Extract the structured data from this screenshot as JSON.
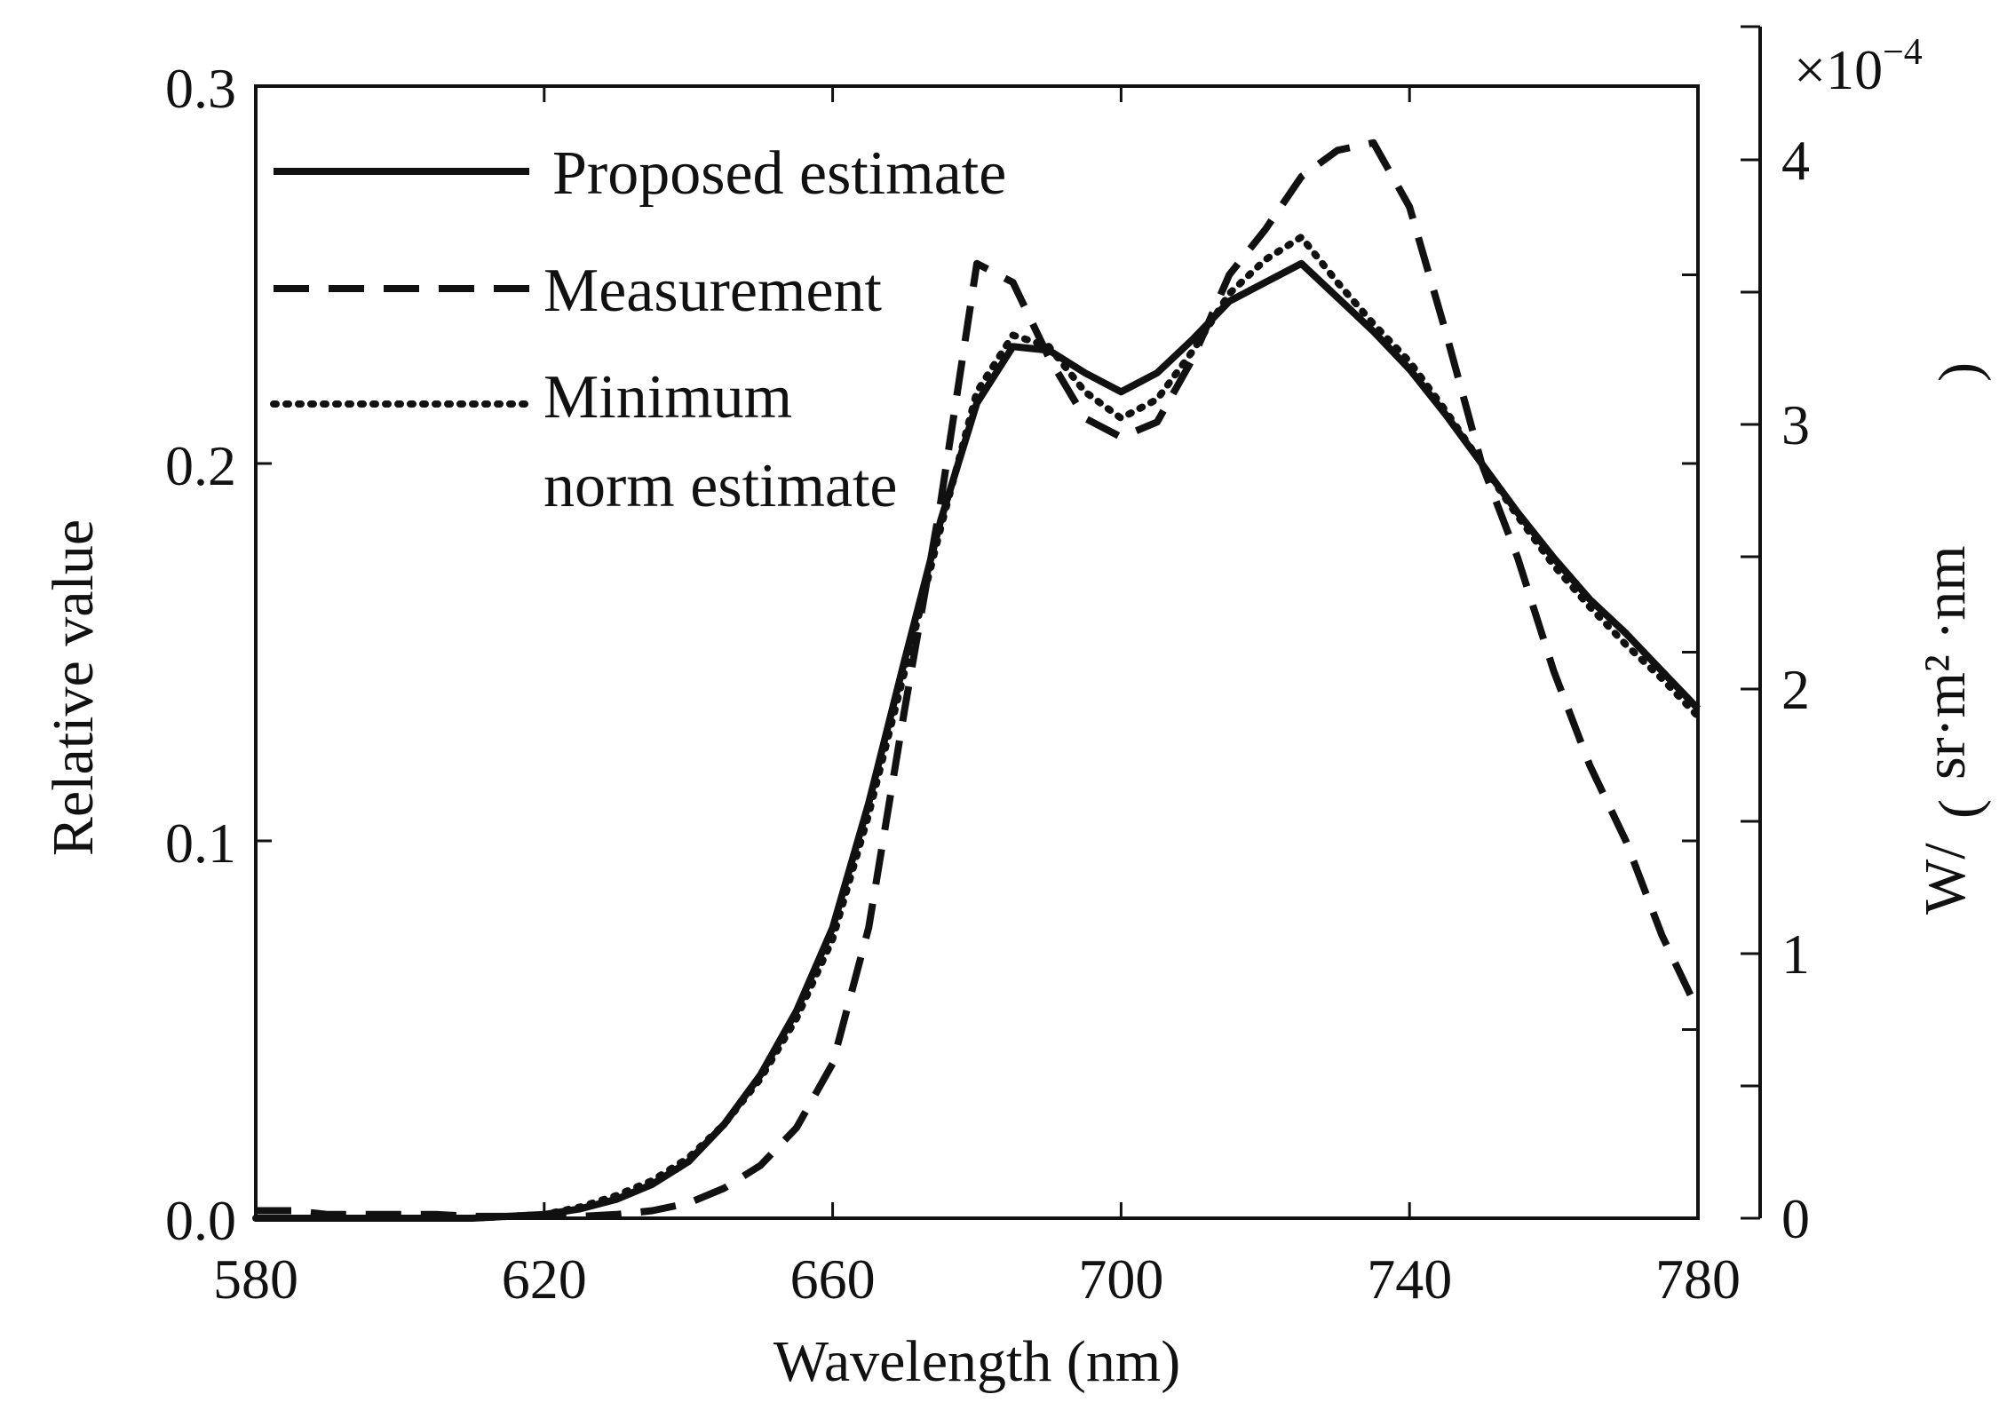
{
  "chart_data": {
    "type": "line",
    "title": "",
    "xlabel": "Wavelength (nm)",
    "ylabel": "Relative value",
    "ylabel_right_prefix": "W/",
    "ylabel_right_unit": "sr·m² ·nm",
    "right_axis_multiplier": "×10",
    "right_axis_exponent": "−4",
    "xlim": [
      580,
      780
    ],
    "ylim": [
      0.0,
      0.3
    ],
    "ylim_right": [
      0,
      4.3
    ],
    "x_ticks": [
      580,
      620,
      660,
      700,
      740,
      780
    ],
    "x_tick_labels": [
      "580",
      "620",
      "660",
      "700",
      "740",
      "780"
    ],
    "y_ticks": [
      0.0,
      0.1,
      0.2,
      0.3
    ],
    "y_tick_labels": [
      "0.0",
      "0.1",
      "0.2",
      "0.3"
    ],
    "y_minor_ticks": [
      0.05,
      0.15,
      0.25
    ],
    "y_right_ticks": [
      0,
      1,
      2,
      3,
      4
    ],
    "y_right_tick_labels": [
      "0",
      "1",
      "2",
      "3",
      "4"
    ],
    "y_right_minor_ticks": [
      0.5,
      1.5,
      2.5,
      3.5
    ],
    "grid": false,
    "legend_position": "top-left",
    "x": [
      580,
      585,
      590,
      595,
      600,
      605,
      610,
      615,
      620,
      625,
      630,
      635,
      640,
      645,
      650,
      655,
      660,
      665,
      670,
      675,
      680,
      685,
      690,
      695,
      700,
      705,
      710,
      715,
      720,
      725,
      730,
      735,
      740,
      745,
      750,
      755,
      760,
      765,
      770,
      775,
      780
    ],
    "series": [
      {
        "name": "Proposed estimate",
        "style": "solid",
        "axis": "left",
        "values": [
          0.0,
          0.0,
          0.0,
          0.0,
          0.0,
          0.0,
          0.0,
          0.0005,
          0.001,
          0.0025,
          0.005,
          0.009,
          0.015,
          0.025,
          0.038,
          0.055,
          0.077,
          0.11,
          0.148,
          0.185,
          0.216,
          0.231,
          0.23,
          0.224,
          0.219,
          0.224,
          0.233,
          0.243,
          0.248,
          0.253,
          0.244,
          0.235,
          0.225,
          0.213,
          0.2,
          0.187,
          0.175,
          0.164,
          0.155,
          0.145,
          0.135
        ]
      },
      {
        "name": "Measurement",
        "style": "dashed",
        "axis": "left",
        "values": [
          0.002,
          0.002,
          0.001,
          0.001,
          0.001,
          0.001,
          0.0005,
          0.0005,
          0.0005,
          0.0005,
          0.001,
          0.002,
          0.004,
          0.008,
          0.014,
          0.024,
          0.041,
          0.077,
          0.135,
          0.19,
          0.253,
          0.248,
          0.228,
          0.212,
          0.207,
          0.211,
          0.228,
          0.25,
          0.262,
          0.276,
          0.283,
          0.285,
          0.268,
          0.235,
          0.2,
          0.175,
          0.145,
          0.12,
          0.1,
          0.075,
          0.055
        ]
      },
      {
        "name": "Minimum norm estimate",
        "style": "dotted",
        "axis": "left",
        "values": [
          0.0,
          0.0,
          0.0,
          0.0,
          0.0,
          0.0,
          0.0,
          0.0005,
          0.001,
          0.003,
          0.006,
          0.01,
          0.016,
          0.025,
          0.037,
          0.053,
          0.074,
          0.107,
          0.145,
          0.183,
          0.219,
          0.234,
          0.231,
          0.219,
          0.212,
          0.217,
          0.23,
          0.245,
          0.254,
          0.26,
          0.248,
          0.237,
          0.227,
          0.214,
          0.2,
          0.186,
          0.173,
          0.162,
          0.152,
          0.143,
          0.133
        ]
      }
    ]
  }
}
